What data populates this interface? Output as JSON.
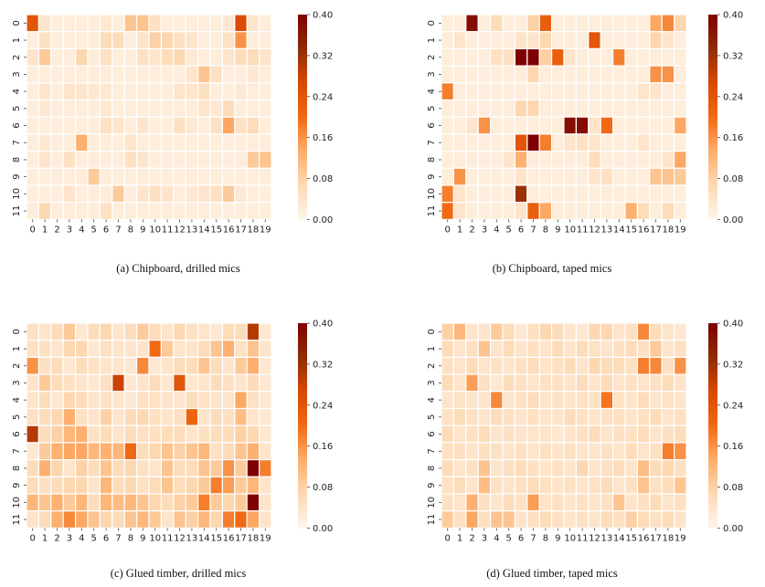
{
  "figure": {
    "colormap": [
      "#fff5eb",
      "#fdd9b4",
      "#fdae6b",
      "#f16913",
      "#d94801",
      "#8c2d04",
      "#7f0000"
    ],
    "vmax": 0.4
  },
  "chart_data": [
    {
      "type": "heatmap",
      "caption": "(a) Chipboard, drilled mics",
      "x_ticks": [
        "0",
        "1",
        "2",
        "3",
        "4",
        "5",
        "6",
        "7",
        "8",
        "9",
        "10",
        "11",
        "12",
        "13",
        "14",
        "15",
        "16",
        "17",
        "18",
        "19"
      ],
      "y_ticks": [
        "0",
        "1",
        "2",
        "3",
        "4",
        "5",
        "6",
        "7",
        "8",
        "9",
        "10",
        "11"
      ],
      "colorbar_ticks": [
        "0.00",
        "0.08",
        "0.16",
        "0.24",
        "0.32",
        "0.40"
      ],
      "zlim": [
        0.0,
        0.4
      ],
      "values": [
        [
          0.24,
          0.04,
          0.02,
          0.02,
          0.02,
          0.02,
          0.03,
          0.02,
          0.1,
          0.1,
          0.05,
          0.02,
          0.02,
          0.02,
          0.02,
          0.02,
          0.03,
          0.26,
          0.04,
          0.02
        ],
        [
          0.02,
          0.05,
          0.02,
          0.02,
          0.02,
          0.02,
          0.06,
          0.06,
          0.02,
          0.04,
          0.08,
          0.07,
          0.05,
          0.04,
          0.02,
          0.02,
          0.05,
          0.16,
          0.02,
          0.02
        ],
        [
          0.04,
          0.09,
          0.02,
          0.02,
          0.07,
          0.02,
          0.05,
          0.02,
          0.02,
          0.05,
          0.04,
          0.06,
          0.07,
          0.03,
          0.02,
          0.02,
          0.04,
          0.06,
          0.06,
          0.04
        ],
        [
          0.02,
          0.02,
          0.02,
          0.02,
          0.02,
          0.02,
          0.02,
          0.02,
          0.02,
          0.02,
          0.02,
          0.02,
          0.02,
          0.04,
          0.1,
          0.05,
          0.02,
          0.02,
          0.03,
          0.02
        ],
        [
          0.02,
          0.04,
          0.02,
          0.04,
          0.04,
          0.03,
          0.03,
          0.02,
          0.02,
          0.02,
          0.02,
          0.02,
          0.04,
          0.04,
          0.05,
          0.02,
          0.02,
          0.03,
          0.02,
          0.02
        ],
        [
          0.02,
          0.03,
          0.02,
          0.02,
          0.02,
          0.02,
          0.03,
          0.02,
          0.02,
          0.02,
          0.02,
          0.02,
          0.02,
          0.02,
          0.04,
          0.03,
          0.06,
          0.02,
          0.02,
          0.02
        ],
        [
          0.02,
          0.02,
          0.02,
          0.02,
          0.02,
          0.02,
          0.05,
          0.04,
          0.02,
          0.04,
          0.02,
          0.02,
          0.05,
          0.03,
          0.02,
          0.05,
          0.14,
          0.05,
          0.06,
          0.02
        ],
        [
          0.02,
          0.03,
          0.02,
          0.02,
          0.13,
          0.02,
          0.02,
          0.02,
          0.04,
          0.02,
          0.02,
          0.02,
          0.02,
          0.02,
          0.02,
          0.02,
          0.02,
          0.02,
          0.02,
          0.02
        ],
        [
          0.02,
          0.04,
          0.02,
          0.05,
          0.02,
          0.02,
          0.02,
          0.02,
          0.05,
          0.04,
          0.02,
          0.02,
          0.02,
          0.02,
          0.02,
          0.02,
          0.02,
          0.02,
          0.09,
          0.1
        ],
        [
          0.02,
          0.02,
          0.02,
          0.02,
          0.02,
          0.09,
          0.02,
          0.02,
          0.02,
          0.02,
          0.02,
          0.02,
          0.02,
          0.02,
          0.02,
          0.02,
          0.02,
          0.02,
          0.02,
          0.02
        ],
        [
          0.02,
          0.02,
          0.02,
          0.04,
          0.02,
          0.02,
          0.02,
          0.09,
          0.02,
          0.04,
          0.05,
          0.04,
          0.02,
          0.03,
          0.04,
          0.05,
          0.09,
          0.03,
          0.02,
          0.02
        ],
        [
          0.02,
          0.07,
          0.02,
          0.02,
          0.02,
          0.02,
          0.05,
          0.02,
          0.02,
          0.02,
          0.02,
          0.02,
          0.02,
          0.02,
          0.02,
          0.02,
          0.02,
          0.02,
          0.02,
          0.02
        ]
      ]
    },
    {
      "type": "heatmap",
      "caption": "(b) Chipboard, taped mics",
      "x_ticks": [
        "0",
        "1",
        "2",
        "3",
        "4",
        "5",
        "6",
        "7",
        "8",
        "9",
        "10",
        "11",
        "12",
        "13",
        "14",
        "15",
        "16",
        "17",
        "18",
        "19"
      ],
      "y_ticks": [
        "0",
        "1",
        "2",
        "3",
        "4",
        "5",
        "6",
        "7",
        "8",
        "9",
        "10",
        "11"
      ],
      "colorbar_ticks": [
        "0.00",
        "0.08",
        "0.16",
        "0.24",
        "0.32",
        "0.40"
      ],
      "zlim": [
        0.0,
        0.4
      ],
      "values": [
        [
          0.02,
          0.02,
          0.38,
          0.02,
          0.06,
          0.02,
          0.02,
          0.08,
          0.22,
          0.02,
          0.02,
          0.02,
          0.02,
          0.02,
          0.02,
          0.02,
          0.02,
          0.14,
          0.17,
          0.07
        ],
        [
          0.02,
          0.04,
          0.02,
          0.02,
          0.02,
          0.02,
          0.04,
          0.04,
          0.07,
          0.02,
          0.02,
          0.02,
          0.24,
          0.02,
          0.02,
          0.02,
          0.02,
          0.07,
          0.04,
          0.02
        ],
        [
          0.02,
          0.02,
          0.02,
          0.02,
          0.05,
          0.05,
          0.4,
          0.4,
          0.08,
          0.22,
          0.04,
          0.02,
          0.02,
          0.02,
          0.18,
          0.02,
          0.02,
          0.02,
          0.02,
          0.02
        ],
        [
          0.02,
          0.02,
          0.02,
          0.02,
          0.02,
          0.02,
          0.02,
          0.07,
          0.02,
          0.02,
          0.02,
          0.02,
          0.02,
          0.02,
          0.02,
          0.02,
          0.02,
          0.16,
          0.16,
          0.02
        ],
        [
          0.18,
          0.02,
          0.02,
          0.02,
          0.02,
          0.02,
          0.02,
          0.02,
          0.02,
          0.02,
          0.02,
          0.02,
          0.02,
          0.02,
          0.02,
          0.02,
          0.04,
          0.04,
          0.02,
          0.02
        ],
        [
          0.02,
          0.02,
          0.02,
          0.02,
          0.02,
          0.02,
          0.07,
          0.07,
          0.02,
          0.02,
          0.02,
          0.02,
          0.02,
          0.02,
          0.02,
          0.02,
          0.02,
          0.02,
          0.02,
          0.02
        ],
        [
          0.02,
          0.02,
          0.04,
          0.16,
          0.02,
          0.02,
          0.02,
          0.02,
          0.02,
          0.02,
          0.38,
          0.38,
          0.04,
          0.2,
          0.02,
          0.02,
          0.02,
          0.02,
          0.02,
          0.14
        ],
        [
          0.02,
          0.02,
          0.02,
          0.02,
          0.02,
          0.02,
          0.24,
          0.4,
          0.18,
          0.02,
          0.04,
          0.05,
          0.04,
          0.02,
          0.02,
          0.02,
          0.04,
          0.02,
          0.02,
          0.02
        ],
        [
          0.02,
          0.02,
          0.02,
          0.02,
          0.02,
          0.04,
          0.13,
          0.02,
          0.02,
          0.02,
          0.02,
          0.02,
          0.06,
          0.02,
          0.02,
          0.02,
          0.02,
          0.02,
          0.04,
          0.14
        ],
        [
          0.02,
          0.16,
          0.02,
          0.02,
          0.02,
          0.02,
          0.04,
          0.02,
          0.02,
          0.02,
          0.02,
          0.02,
          0.04,
          0.05,
          0.02,
          0.02,
          0.02,
          0.1,
          0.1,
          0.09
        ],
        [
          0.18,
          0.04,
          0.02,
          0.02,
          0.02,
          0.02,
          0.32,
          0.02,
          0.02,
          0.02,
          0.02,
          0.02,
          0.02,
          0.02,
          0.02,
          0.02,
          0.02,
          0.02,
          0.02,
          0.02
        ],
        [
          0.2,
          0.04,
          0.02,
          0.02,
          0.02,
          0.02,
          0.04,
          0.22,
          0.14,
          0.02,
          0.02,
          0.02,
          0.02,
          0.02,
          0.02,
          0.13,
          0.06,
          0.02,
          0.06,
          0.02
        ]
      ]
    },
    {
      "type": "heatmap",
      "caption": "(c) Glued timber, drilled mics",
      "x_ticks": [
        "0",
        "1",
        "2",
        "3",
        "4",
        "5",
        "6",
        "7",
        "8",
        "9",
        "10",
        "11",
        "12",
        "13",
        "14",
        "15",
        "16",
        "17",
        "18",
        "19"
      ],
      "y_ticks": [
        "0",
        "1",
        "2",
        "3",
        "4",
        "5",
        "6",
        "7",
        "8",
        "9",
        "10",
        "11"
      ],
      "colorbar_ticks": [
        "0.00",
        "0.08",
        "0.16",
        "0.24",
        "0.32",
        "0.40"
      ],
      "zlim": [
        0.0,
        0.4
      ],
      "values": [
        [
          0.05,
          0.04,
          0.06,
          0.09,
          0.03,
          0.06,
          0.07,
          0.04,
          0.06,
          0.09,
          0.06,
          0.04,
          0.07,
          0.05,
          0.04,
          0.03,
          0.06,
          0.06,
          0.3,
          0.03
        ],
        [
          0.05,
          0.05,
          0.04,
          0.07,
          0.07,
          0.03,
          0.05,
          0.04,
          0.04,
          0.04,
          0.2,
          0.09,
          0.04,
          0.04,
          0.06,
          0.1,
          0.13,
          0.05,
          0.1,
          0.04
        ],
        [
          0.16,
          0.05,
          0.06,
          0.03,
          0.06,
          0.05,
          0.04,
          0.04,
          0.03,
          0.17,
          0.03,
          0.04,
          0.06,
          0.06,
          0.1,
          0.06,
          0.04,
          0.09,
          0.13,
          0.03
        ],
        [
          0.04,
          0.09,
          0.06,
          0.05,
          0.04,
          0.03,
          0.05,
          0.28,
          0.03,
          0.04,
          0.06,
          0.03,
          0.24,
          0.03,
          0.04,
          0.06,
          0.05,
          0.04,
          0.06,
          0.03
        ],
        [
          0.04,
          0.06,
          0.03,
          0.07,
          0.06,
          0.04,
          0.05,
          0.04,
          0.03,
          0.05,
          0.05,
          0.04,
          0.04,
          0.06,
          0.05,
          0.04,
          0.04,
          0.14,
          0.05,
          0.03
        ],
        [
          0.05,
          0.06,
          0.07,
          0.13,
          0.05,
          0.04,
          0.08,
          0.04,
          0.06,
          0.07,
          0.05,
          0.04,
          0.05,
          0.21,
          0.04,
          0.06,
          0.05,
          0.11,
          0.04,
          0.03
        ],
        [
          0.3,
          0.06,
          0.08,
          0.12,
          0.13,
          0.05,
          0.06,
          0.04,
          0.06,
          0.05,
          0.05,
          0.06,
          0.06,
          0.04,
          0.05,
          0.06,
          0.06,
          0.08,
          0.07,
          0.03
        ],
        [
          0.03,
          0.09,
          0.13,
          0.14,
          0.14,
          0.12,
          0.13,
          0.12,
          0.2,
          0.06,
          0.07,
          0.1,
          0.08,
          0.1,
          0.12,
          0.05,
          0.06,
          0.1,
          0.13,
          0.04
        ],
        [
          0.06,
          0.13,
          0.07,
          0.04,
          0.08,
          0.06,
          0.1,
          0.06,
          0.07,
          0.05,
          0.04,
          0.1,
          0.06,
          0.06,
          0.1,
          0.09,
          0.16,
          0.09,
          0.4,
          0.18
        ],
        [
          0.06,
          0.05,
          0.06,
          0.07,
          0.07,
          0.04,
          0.12,
          0.06,
          0.07,
          0.05,
          0.06,
          0.1,
          0.06,
          0.07,
          0.09,
          0.18,
          0.15,
          0.09,
          0.12,
          0.04
        ],
        [
          0.12,
          0.1,
          0.13,
          0.09,
          0.12,
          0.06,
          0.12,
          0.11,
          0.12,
          0.1,
          0.07,
          0.06,
          0.08,
          0.09,
          0.18,
          0.09,
          0.07,
          0.09,
          0.4,
          0.04
        ],
        [
          0.04,
          0.06,
          0.13,
          0.17,
          0.14,
          0.1,
          0.07,
          0.06,
          0.1,
          0.12,
          0.09,
          0.04,
          0.1,
          0.08,
          0.12,
          0.07,
          0.18,
          0.2,
          0.14,
          0.04
        ]
      ]
    },
    {
      "type": "heatmap",
      "caption": "(d) Glued timber, taped mics",
      "x_ticks": [
        "0",
        "1",
        "2",
        "3",
        "4",
        "5",
        "6",
        "7",
        "8",
        "9",
        "10",
        "11",
        "12",
        "13",
        "14",
        "15",
        "16",
        "17",
        "18",
        "19"
      ],
      "y_ticks": [
        "0",
        "1",
        "2",
        "3",
        "4",
        "5",
        "6",
        "7",
        "8",
        "9",
        "10",
        "11"
      ],
      "colorbar_ticks": [
        "0.00",
        "0.08",
        "0.16",
        "0.24",
        "0.32",
        "0.40"
      ],
      "zlim": [
        0.0,
        0.4
      ],
      "values": [
        [
          0.08,
          0.12,
          0.04,
          0.04,
          0.09,
          0.06,
          0.03,
          0.05,
          0.07,
          0.06,
          0.04,
          0.03,
          0.07,
          0.07,
          0.04,
          0.05,
          0.17,
          0.06,
          0.04,
          0.03
        ],
        [
          0.06,
          0.04,
          0.05,
          0.1,
          0.04,
          0.06,
          0.04,
          0.05,
          0.04,
          0.06,
          0.04,
          0.06,
          0.05,
          0.04,
          0.05,
          0.06,
          0.05,
          0.09,
          0.04,
          0.05
        ],
        [
          0.05,
          0.04,
          0.06,
          0.04,
          0.05,
          0.04,
          0.05,
          0.06,
          0.04,
          0.05,
          0.06,
          0.04,
          0.07,
          0.06,
          0.06,
          0.05,
          0.18,
          0.17,
          0.05,
          0.16
        ],
        [
          0.06,
          0.04,
          0.15,
          0.05,
          0.03,
          0.06,
          0.05,
          0.04,
          0.05,
          0.05,
          0.04,
          0.06,
          0.04,
          0.06,
          0.04,
          0.05,
          0.04,
          0.05,
          0.06,
          0.04
        ],
        [
          0.04,
          0.05,
          0.04,
          0.04,
          0.17,
          0.04,
          0.05,
          0.06,
          0.04,
          0.05,
          0.04,
          0.05,
          0.05,
          0.19,
          0.05,
          0.04,
          0.06,
          0.04,
          0.05,
          0.04
        ],
        [
          0.05,
          0.06,
          0.05,
          0.04,
          0.06,
          0.05,
          0.04,
          0.05,
          0.04,
          0.04,
          0.06,
          0.05,
          0.04,
          0.05,
          0.05,
          0.04,
          0.05,
          0.06,
          0.04,
          0.05
        ],
        [
          0.06,
          0.04,
          0.05,
          0.06,
          0.04,
          0.05,
          0.04,
          0.04,
          0.04,
          0.03,
          0.04,
          0.05,
          0.06,
          0.04,
          0.05,
          0.05,
          0.06,
          0.04,
          0.05,
          0.06
        ],
        [
          0.05,
          0.05,
          0.04,
          0.05,
          0.05,
          0.04,
          0.05,
          0.04,
          0.05,
          0.04,
          0.05,
          0.04,
          0.04,
          0.05,
          0.04,
          0.06,
          0.04,
          0.05,
          0.18,
          0.16
        ],
        [
          0.06,
          0.04,
          0.05,
          0.1,
          0.04,
          0.05,
          0.06,
          0.05,
          0.04,
          0.05,
          0.04,
          0.07,
          0.04,
          0.05,
          0.06,
          0.04,
          0.11,
          0.06,
          0.07,
          0.05
        ],
        [
          0.05,
          0.06,
          0.04,
          0.11,
          0.05,
          0.04,
          0.05,
          0.06,
          0.05,
          0.04,
          0.05,
          0.04,
          0.05,
          0.06,
          0.04,
          0.05,
          0.1,
          0.05,
          0.06,
          0.1
        ],
        [
          0.05,
          0.04,
          0.13,
          0.05,
          0.04,
          0.06,
          0.05,
          0.15,
          0.04,
          0.05,
          0.04,
          0.05,
          0.04,
          0.05,
          0.1,
          0.04,
          0.05,
          0.06,
          0.04,
          0.05
        ],
        [
          0.09,
          0.05,
          0.14,
          0.05,
          0.1,
          0.1,
          0.04,
          0.05,
          0.06,
          0.05,
          0.04,
          0.05,
          0.04,
          0.06,
          0.05,
          0.08,
          0.06,
          0.05,
          0.06,
          0.04
        ]
      ]
    }
  ]
}
